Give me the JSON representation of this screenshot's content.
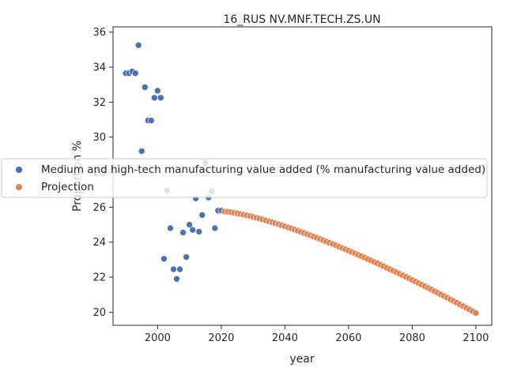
{
  "chart_data": {
    "type": "scatter",
    "title": "16_RUS NV.MNF.TECH.ZS.UN",
    "xlabel": "year",
    "ylabel": "Proportion %",
    "xlim": [
      1986,
      2105
    ],
    "ylim": [
      19.25,
      36.3
    ],
    "xticks": [
      2000,
      2020,
      2040,
      2060,
      2080,
      2100
    ],
    "yticks": [
      20,
      22,
      24,
      26,
      28,
      30,
      32,
      34,
      36
    ],
    "grid": false,
    "legend_placement": "center-left",
    "series": [
      {
        "name": "Medium and high-tech manufacturing value added (% manufacturing value added)",
        "color": "#4c72b0",
        "x": [
          1990,
          1991,
          1992,
          1993,
          1994,
          1995,
          1996,
          1997,
          1998,
          1999,
          2000,
          2001,
          2002,
          2003,
          2004,
          2005,
          2006,
          2007,
          2008,
          2009,
          2010,
          2011,
          2012,
          2013,
          2014,
          2015,
          2016,
          2017,
          2018,
          2019,
          2020
        ],
        "y": [
          33.65,
          33.65,
          33.75,
          33.65,
          35.25,
          29.2,
          32.85,
          30.95,
          30.95,
          32.25,
          32.65,
          32.25,
          23.05,
          26.95,
          24.8,
          22.45,
          21.9,
          22.45,
          24.55,
          23.15,
          25.0,
          24.7,
          26.5,
          24.6,
          25.55,
          28.55,
          26.55,
          26.9,
          24.8,
          25.8,
          25.8
        ]
      },
      {
        "name": "Projection",
        "color": "#dd8452",
        "x_start": 2021,
        "x_end": 2100,
        "y_start": 25.75,
        "y_end": 19.95,
        "curve_power": 1.35
      }
    ]
  }
}
